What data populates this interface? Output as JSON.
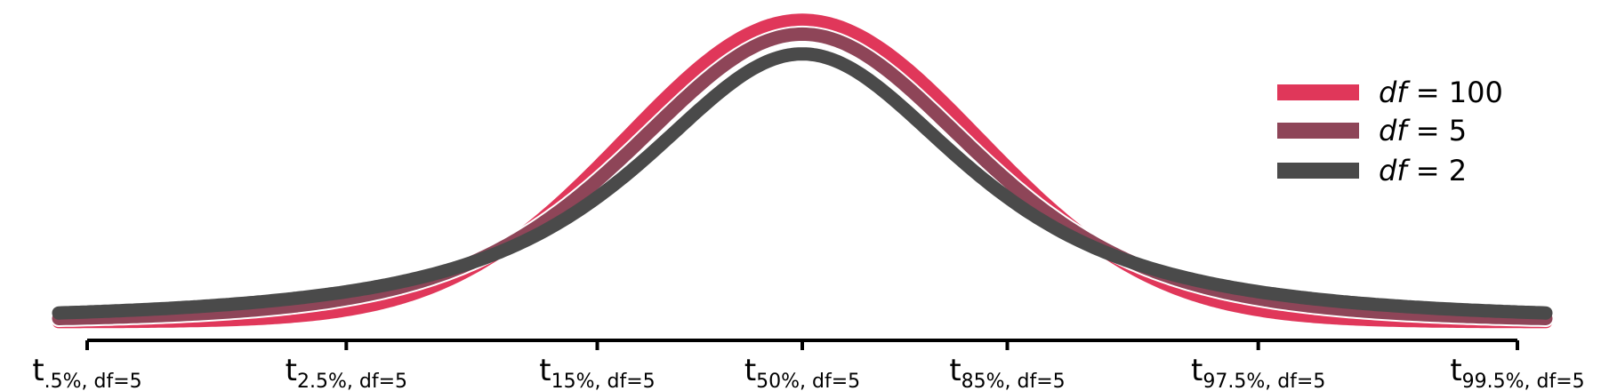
{
  "chart_data": {
    "type": "line",
    "title": "",
    "xlabel": "",
    "ylabel": "",
    "xlim": [
      -4.032,
      4.032
    ],
    "x_ticks": [
      {
        "value": -4.032,
        "main": "t",
        "sub": ".5%, df=5"
      },
      {
        "value": -2.571,
        "main": "t",
        "sub": "2.5%, df=5"
      },
      {
        "value": -1.156,
        "main": "t",
        "sub": "15%, df=5"
      },
      {
        "value": 0,
        "main": "t",
        "sub": "50%, df=5"
      },
      {
        "value": 1.156,
        "main": "t",
        "sub": "85%, df=5"
      },
      {
        "value": 2.571,
        "main": "t",
        "sub": "97.5%, df=5"
      },
      {
        "value": 4.032,
        "main": "t",
        "sub": "99.5%, df=5"
      }
    ],
    "series": [
      {
        "name": "df = 100",
        "df_label": "df",
        "df_value": "100",
        "df": 100,
        "color": "#e0375a",
        "legend_y": 104
      },
      {
        "name": "df = 5",
        "df_label": "df",
        "df_value": "5",
        "df": 5,
        "color": "#8e4558",
        "legend_y": 147
      },
      {
        "name": "df = 2",
        "df_label": "df",
        "df_value": "2",
        "df": 2,
        "color": "#4a4a4a",
        "legend_y": 192
      }
    ],
    "legend_position": "top-right",
    "grid": false
  }
}
